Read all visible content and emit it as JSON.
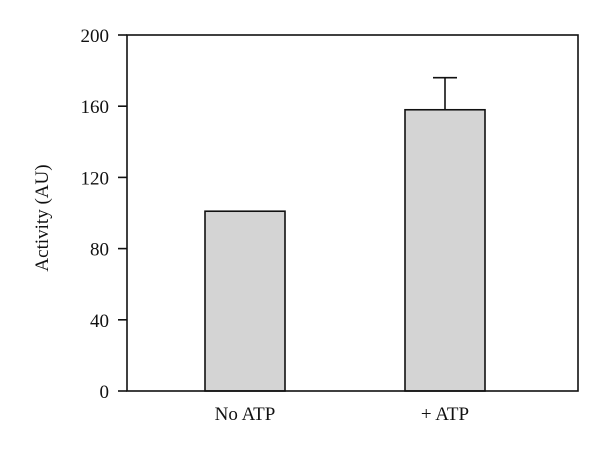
{
  "chart_data": {
    "type": "bar",
    "categories": [
      "No ATP",
      "+ ATP"
    ],
    "values": [
      101,
      158
    ],
    "error_bars": [
      null,
      18
    ],
    "ylabel": "Activity (AU)",
    "xlabel": "",
    "title": "",
    "ylim": [
      0,
      200
    ],
    "yticks": [
      0,
      40,
      80,
      120,
      160,
      200
    ],
    "grid": false,
    "legend": "none",
    "bar_color": "#d4d4d4",
    "edge_color": "#111111"
  }
}
